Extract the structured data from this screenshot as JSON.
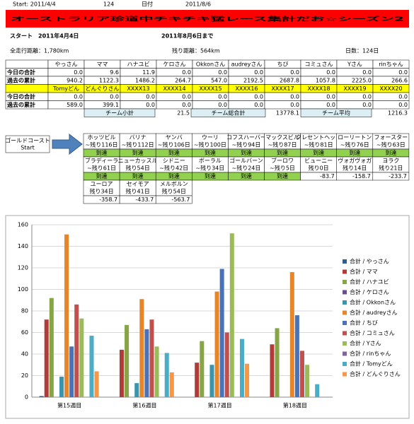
{
  "header": {
    "start_label": "Start: 2011/4/4",
    "days": "124",
    "date_label": "日付",
    "date": "2011/8/6",
    "title": "オーストラリア珍道中チキチキ猛レース集計だお☆シーズン2",
    "start_date": "スタート　2011年4月4日",
    "end_date": "2011年8月6日まで",
    "total_distance": "全走行距離：1,780km",
    "remaining": "残り距離：564km",
    "days_count": "日数：124日"
  },
  "table": {
    "groups": [
      {
        "headers": [
          "やっさん",
          "ママ",
          "ハナユビ",
          "ケロさん",
          "Okkonさん",
          "audreyさん",
          "ちび",
          "コミュさん",
          "Yさん",
          "rinちゃん"
        ],
        "rows": [
          {
            "label": "今日の合計",
            "values": [
              "0.0",
              "9.6",
              "11.9",
              "0.0",
              "0.0",
              "0.0",
              "0.0",
              "0.0",
              "0.0",
              "0.0"
            ]
          },
          {
            "label": "過去の累計",
            "values": [
              "940.2",
              "1122.3",
              "1486.2",
              "264.7",
              "547.0",
              "2192.5",
              "2687.8",
              "1057.8",
              "2225.0",
              "266.6"
            ]
          }
        ]
      },
      {
        "headers": [
          "Tomyどん",
          "どんぐりさん",
          "XXXX13",
          "XXXX14",
          "XXXX15",
          "XXXX16",
          "XXXX17",
          "XXXX18",
          "XXXX19",
          "XXXX20"
        ],
        "rows": [
          {
            "label": "今日の合計",
            "values": [
              "0.0",
              "0.0",
              "0.0",
              "0.0",
              "0.0",
              "0.0",
              "0.0",
              "0.0",
              "0.0",
              "0.0"
            ]
          },
          {
            "label": "過去の累計",
            "values": [
              "589.0",
              "399.1",
              "0.0",
              "0.0",
              "0.0",
              "0.0",
              "0.0",
              "0.0",
              "0.0",
              "0.0"
            ]
          }
        ]
      }
    ],
    "summary": [
      {
        "label": "チーム小計",
        "value": "21.5"
      },
      {
        "label": "チーム総合計",
        "value": "13778.1"
      },
      {
        "label": "チーム平均",
        "value": "1216.3"
      }
    ]
  },
  "course": {
    "start": [
      "ゴールドコースト",
      "Start"
    ],
    "stops": [
      {
        "name": "ホッツビル",
        "days": "~残り116日",
        "status": "到達"
      },
      {
        "name": "バリナ",
        "days": "~残り112日",
        "status": "到達"
      },
      {
        "name": "ヤンバ",
        "days": "~残り106日",
        "status": "到達"
      },
      {
        "name": "ウーリ",
        "days": "~残り100日",
        "status": "到達"
      },
      {
        "name": "コフスハーバー",
        "days": "~残り94日",
        "status": "到達"
      },
      {
        "name": "マックスビル",
        "days": "~残り87日",
        "status": "到達"
      },
      {
        "name": "クレセントヘッド",
        "days": "~残り81日",
        "status": "到達"
      },
      {
        "name": "ローリートン",
        "days": "~残り76日",
        "status": "到達"
      },
      {
        "name": "フォースター",
        "days": "~残り63日",
        "status": "到達"
      },
      {
        "name": "ブラディーラ",
        "days": "~残り61日",
        "status": "到達"
      },
      {
        "name": "ニューカッスル",
        "days": "残り54日",
        "status": "到達"
      },
      {
        "name": "シドニー",
        "days": "~残り42日",
        "status": "到達"
      },
      {
        "name": "ボーラル",
        "days": "~残り34日",
        "status": "到達"
      },
      {
        "name": "ゴールバーン",
        "days": "~残り24日",
        "status": "到達"
      },
      {
        "name": "ブーロワ",
        "days": "~残り5日",
        "status": "到達"
      },
      {
        "name": "ビューニー",
        "days": "残り0日",
        "status": "-83.7"
      },
      {
        "name": "ヴォガヴォガ",
        "days": "残り14日",
        "status": "-158.7"
      },
      {
        "name": "ヨラク",
        "days": "残り21日",
        "status": "-233.7"
      },
      {
        "name": "ユーロア",
        "days": "残り34日",
        "status": "-358.7"
      },
      {
        "name": "セイモア",
        "days": "残り41日",
        "status": "-433.7"
      },
      {
        "name": "メルボルン",
        "days": "残り54日",
        "status": "-563.7"
      }
    ]
  },
  "chart_data": {
    "type": "bar",
    "categories": [
      "第15週目",
      "第16週目",
      "第17週目",
      "第18週目"
    ],
    "ylim": [
      0,
      160
    ],
    "yticks": [
      0,
      20,
      40,
      60,
      80,
      100,
      120,
      140,
      160
    ],
    "grid": true,
    "series": [
      {
        "name": "合計 / やっさん",
        "color": "#2e5d8f",
        "values": [
          1,
          0,
          0,
          0
        ]
      },
      {
        "name": "合計 / ママ",
        "color": "#b03c3a",
        "values": [
          72,
          44,
          32,
          49
        ]
      },
      {
        "name": "合計 / ハナユビ",
        "color": "#86a544",
        "values": [
          92,
          67,
          52,
          64
        ]
      },
      {
        "name": "合計 / ケロさん",
        "color": "#6a4c8c",
        "values": [
          0,
          0,
          0,
          0
        ]
      },
      {
        "name": "合計 / Okkonさん",
        "color": "#3995ad",
        "values": [
          19,
          13,
          30,
          0
        ]
      },
      {
        "name": "合計 / audreyさん",
        "color": "#e6852a",
        "values": [
          151,
          91,
          98,
          116
        ]
      },
      {
        "name": "合計 / ちび",
        "color": "#4a72b8",
        "values": [
          47,
          63,
          119,
          76
        ]
      },
      {
        "name": "合計 / コミュさん",
        "color": "#c0504d",
        "values": [
          86,
          72,
          60,
          43
        ]
      },
      {
        "name": "合計 / Yさん",
        "color": "#9bbb59",
        "values": [
          73,
          47,
          152,
          30
        ]
      },
      {
        "name": "合計 / rinちゃん",
        "color": "#8064a2",
        "values": [
          0,
          0,
          0,
          0
        ]
      },
      {
        "name": "合計 / Tomyどん",
        "color": "#4bacc6",
        "values": [
          57,
          41,
          54,
          12
        ]
      },
      {
        "name": "合計 / どんぐりさん",
        "color": "#f79646",
        "values": [
          24,
          23,
          31,
          0
        ]
      }
    ]
  }
}
